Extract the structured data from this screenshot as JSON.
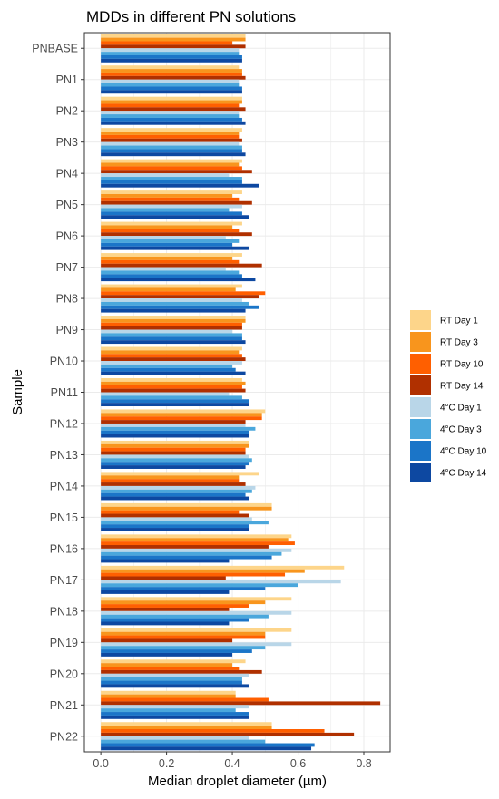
{
  "chart_data": {
    "type": "bar",
    "orientation": "horizontal",
    "title": "MDDs in different PN solutions",
    "xlabel": "Median droplet diameter (µm)",
    "ylabel": "Sample",
    "xlim": [
      -0.05,
      0.88
    ],
    "x_ticks": [
      "0.0",
      "0.2",
      "0.4",
      "0.6",
      "0.8"
    ],
    "grid": true,
    "legend_position": "right",
    "categories": [
      "PNBASE",
      "PN1",
      "PN2",
      "PN3",
      "PN4",
      "PN5",
      "PN6",
      "PN7",
      "PN8",
      "PN9",
      "PN10",
      "PN11",
      "PN12",
      "PN13",
      "PN14",
      "PN15",
      "PN16",
      "PN17",
      "PN18",
      "PN19",
      "PN20",
      "PN21",
      "PN22"
    ],
    "series": [
      {
        "name": "RT Day 1",
        "color": "#fdd58a",
        "values": [
          0.44,
          0.42,
          0.43,
          0.43,
          0.43,
          0.43,
          0.43,
          0.43,
          0.43,
          0.44,
          0.43,
          0.43,
          0.5,
          0.45,
          0.48,
          0.52,
          0.58,
          0.74,
          0.58,
          0.58,
          0.44,
          0.41,
          0.52
        ]
      },
      {
        "name": "RT Day 3",
        "color": "#f8951d",
        "values": [
          0.44,
          0.43,
          0.43,
          0.42,
          0.42,
          0.4,
          0.4,
          0.4,
          0.41,
          0.44,
          0.42,
          0.44,
          0.49,
          0.45,
          0.42,
          0.52,
          0.57,
          0.62,
          0.5,
          0.5,
          0.4,
          0.41,
          0.52
        ]
      },
      {
        "name": "RT Day 10",
        "color": "#ff5f00",
        "values": [
          0.4,
          0.43,
          0.42,
          0.42,
          0.43,
          0.42,
          0.42,
          0.42,
          0.5,
          0.43,
          0.43,
          0.43,
          0.49,
          0.44,
          0.42,
          0.42,
          0.59,
          0.56,
          0.45,
          0.5,
          0.42,
          0.51,
          0.68
        ]
      },
      {
        "name": "RT Day 14",
        "color": "#b03000",
        "values": [
          0.44,
          0.44,
          0.44,
          0.43,
          0.46,
          0.46,
          0.46,
          0.49,
          0.48,
          0.43,
          0.44,
          0.44,
          0.44,
          0.44,
          0.44,
          0.45,
          0.51,
          0.38,
          0.39,
          0.4,
          0.49,
          0.85,
          0.77
        ]
      },
      {
        "name": "4°C Day 1",
        "color": "#b9d6e8",
        "values": [
          0.42,
          0.42,
          0.42,
          0.42,
          0.39,
          0.43,
          0.38,
          0.38,
          0.43,
          0.4,
          0.43,
          0.39,
          0.44,
          0.45,
          0.47,
          0.46,
          0.58,
          0.73,
          0.58,
          0.58,
          0.45,
          0.45,
          0.45
        ]
      },
      {
        "name": "4°C Day 3",
        "color": "#4aa7dc",
        "values": [
          0.42,
          0.42,
          0.42,
          0.43,
          0.43,
          0.39,
          0.42,
          0.42,
          0.45,
          0.43,
          0.4,
          0.43,
          0.47,
          0.46,
          0.46,
          0.51,
          0.55,
          0.6,
          0.51,
          0.5,
          0.43,
          0.41,
          0.5
        ]
      },
      {
        "name": "4°C Day 10",
        "color": "#1b75c8",
        "values": [
          0.43,
          0.43,
          0.43,
          0.43,
          0.43,
          0.43,
          0.4,
          0.43,
          0.48,
          0.43,
          0.41,
          0.45,
          0.45,
          0.45,
          0.44,
          0.45,
          0.52,
          0.5,
          0.45,
          0.46,
          0.43,
          0.45,
          0.65
        ]
      },
      {
        "name": "4°C Day 14",
        "color": "#0d48a1",
        "values": [
          0.43,
          0.43,
          0.44,
          0.44,
          0.48,
          0.45,
          0.45,
          0.47,
          0.44,
          0.44,
          0.44,
          0.45,
          0.45,
          0.44,
          0.45,
          0.45,
          0.39,
          0.39,
          0.39,
          0.4,
          0.45,
          0.45,
          0.64
        ]
      }
    ]
  }
}
